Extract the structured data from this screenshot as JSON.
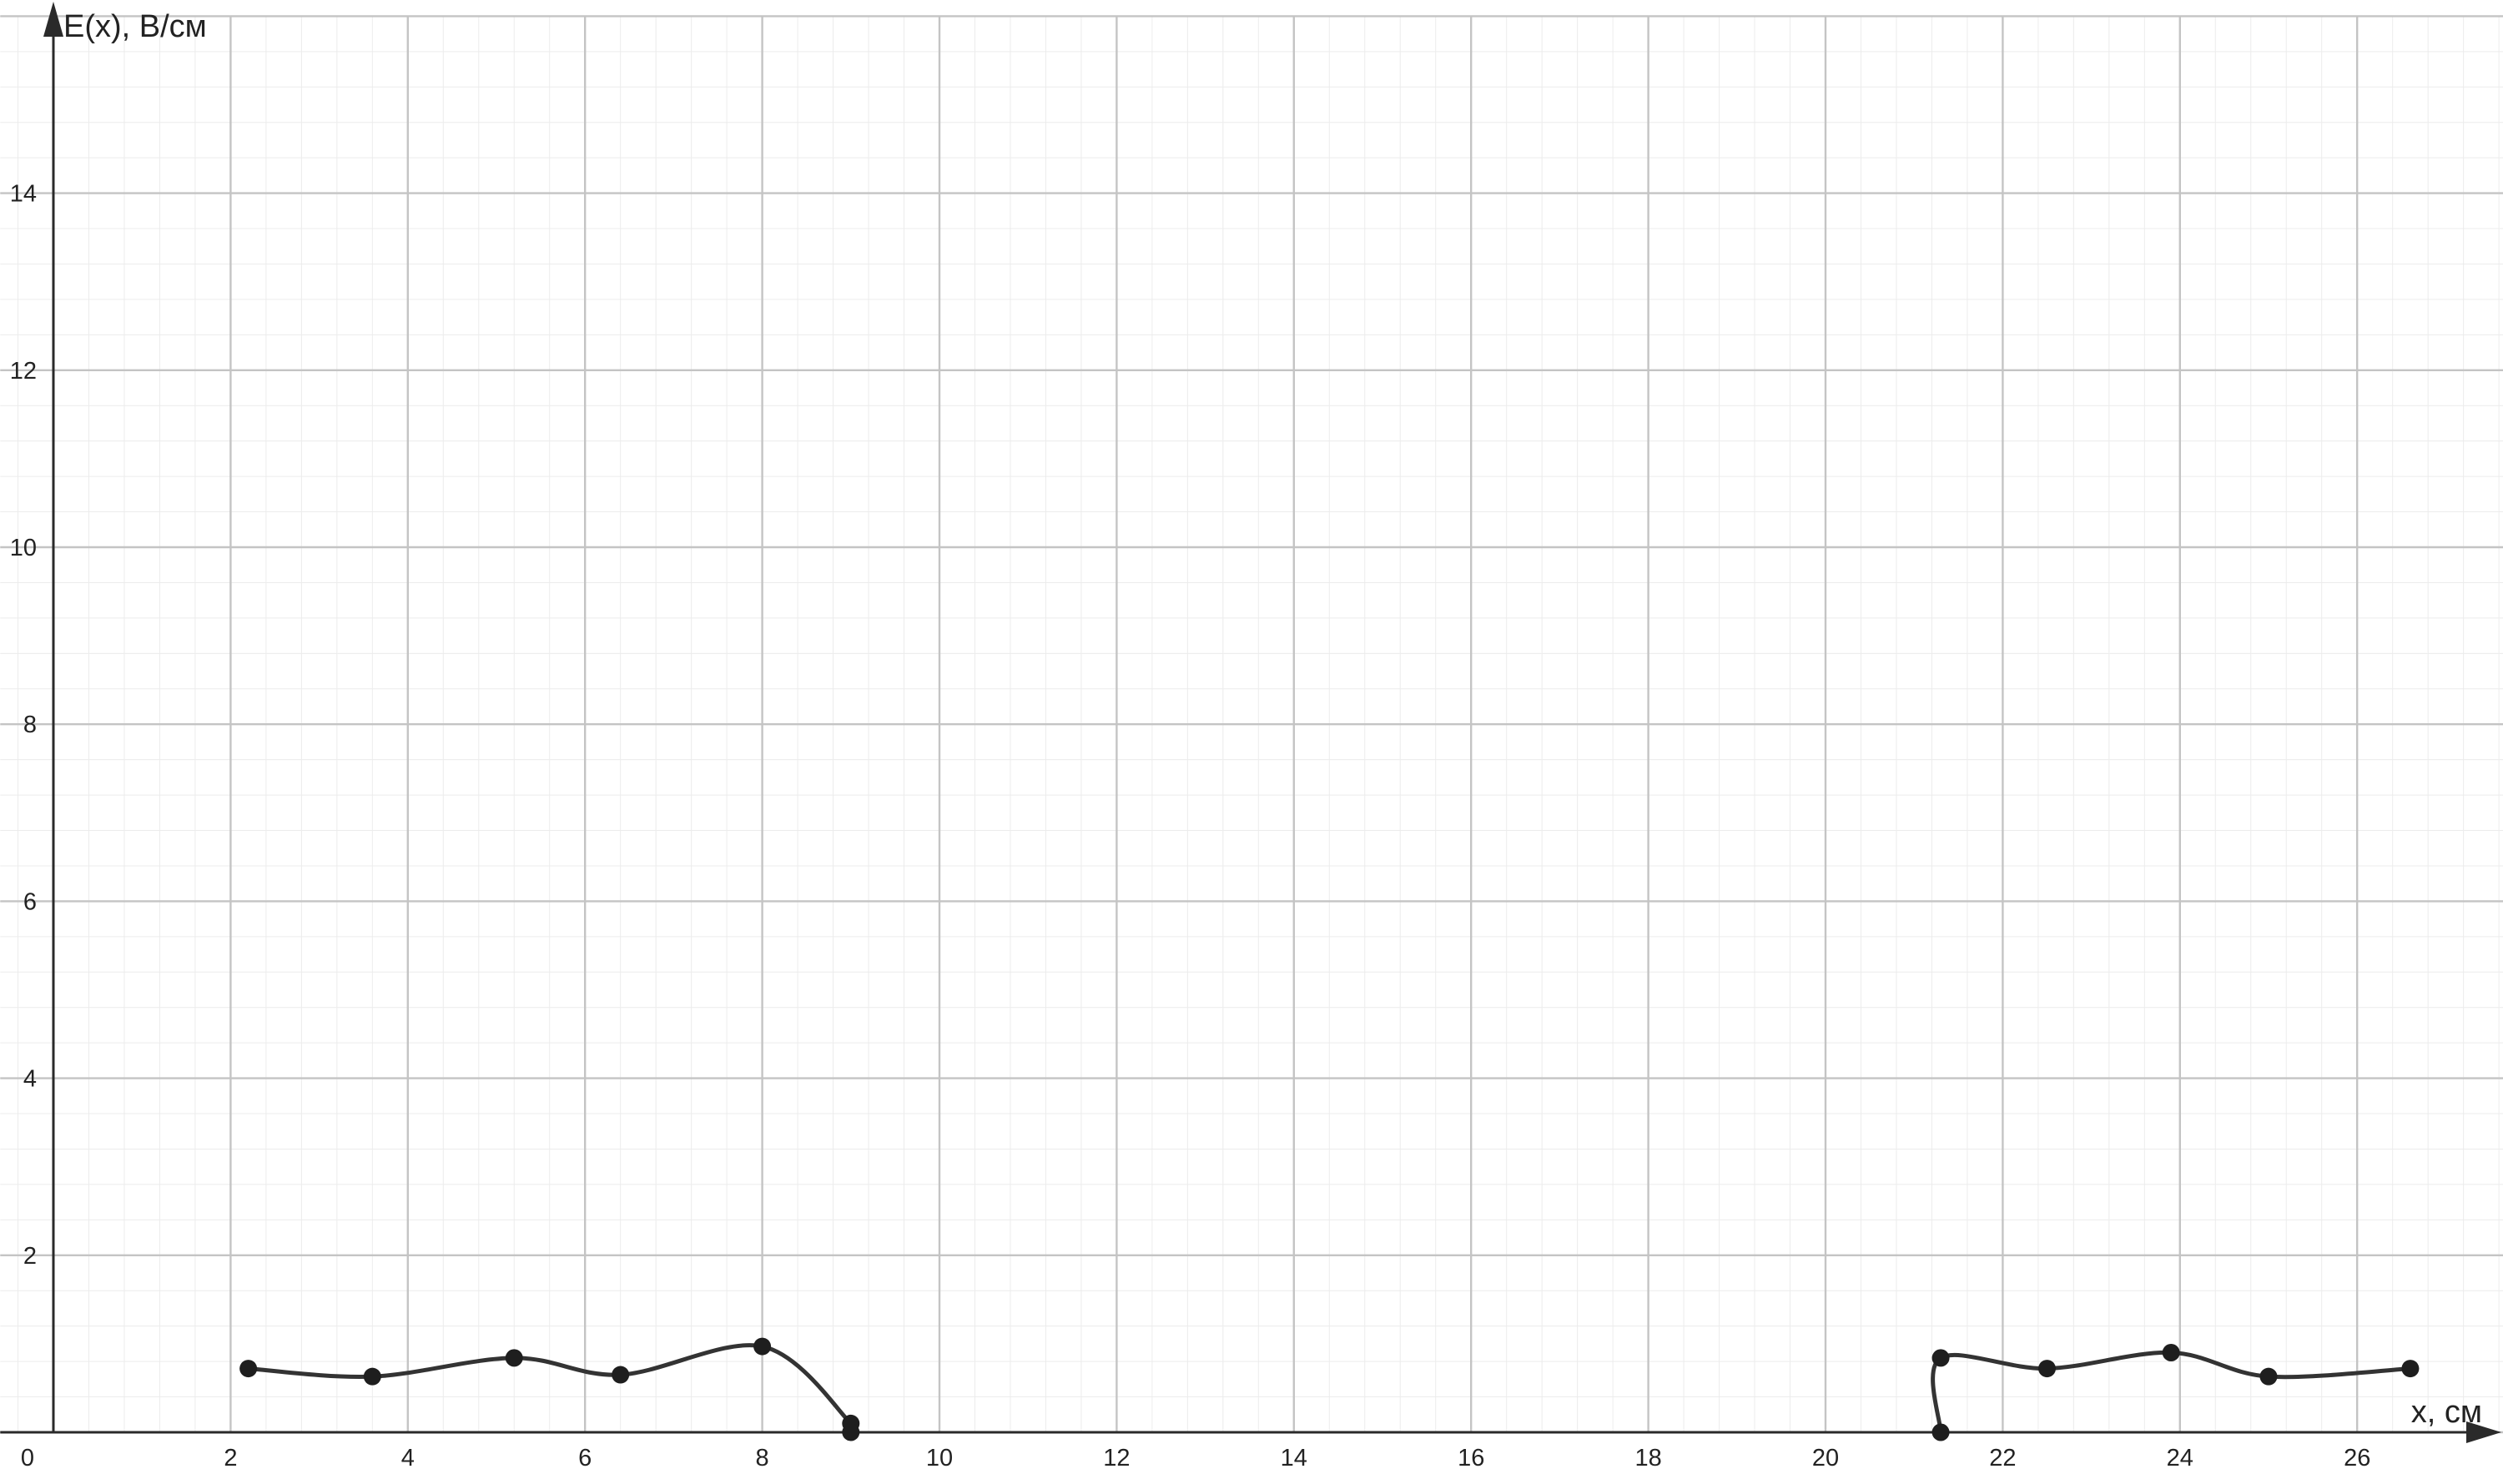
{
  "chart_data": {
    "type": "line",
    "title": "",
    "xlabel": "x, см",
    "ylabel": "E(x), В/см",
    "xlim": [
      -0.6,
      27.6
    ],
    "ylim": [
      0,
      16
    ],
    "x_ticks": [
      0,
      2,
      4,
      6,
      8,
      10,
      12,
      14,
      16,
      18,
      20,
      22,
      24,
      26
    ],
    "y_ticks": [
      2,
      4,
      6,
      8,
      10,
      12,
      14
    ],
    "origin_label": "0",
    "grid": true,
    "legend": "none",
    "colors": {
      "curve": "#333333",
      "point": "#1e1e1e",
      "major_grid": "#c4c4c4",
      "minor_grid": "#ececec",
      "axis": "#2a2a2a"
    },
    "series": [
      {
        "points": [
          [
            2.2,
            0.72
          ],
          [
            3.6,
            0.63
          ],
          [
            5.2,
            0.84
          ],
          [
            6.4,
            0.65
          ],
          [
            8.0,
            0.97
          ],
          [
            9.0,
            0.1
          ],
          [
            9.0,
            0.0
          ]
        ]
      },
      {
        "points": [
          [
            21.3,
            0.0
          ],
          [
            21.3,
            0.84
          ],
          [
            22.5,
            0.72
          ],
          [
            23.9,
            0.9
          ],
          [
            25.0,
            0.63
          ],
          [
            26.6,
            0.72
          ]
        ]
      }
    ]
  }
}
